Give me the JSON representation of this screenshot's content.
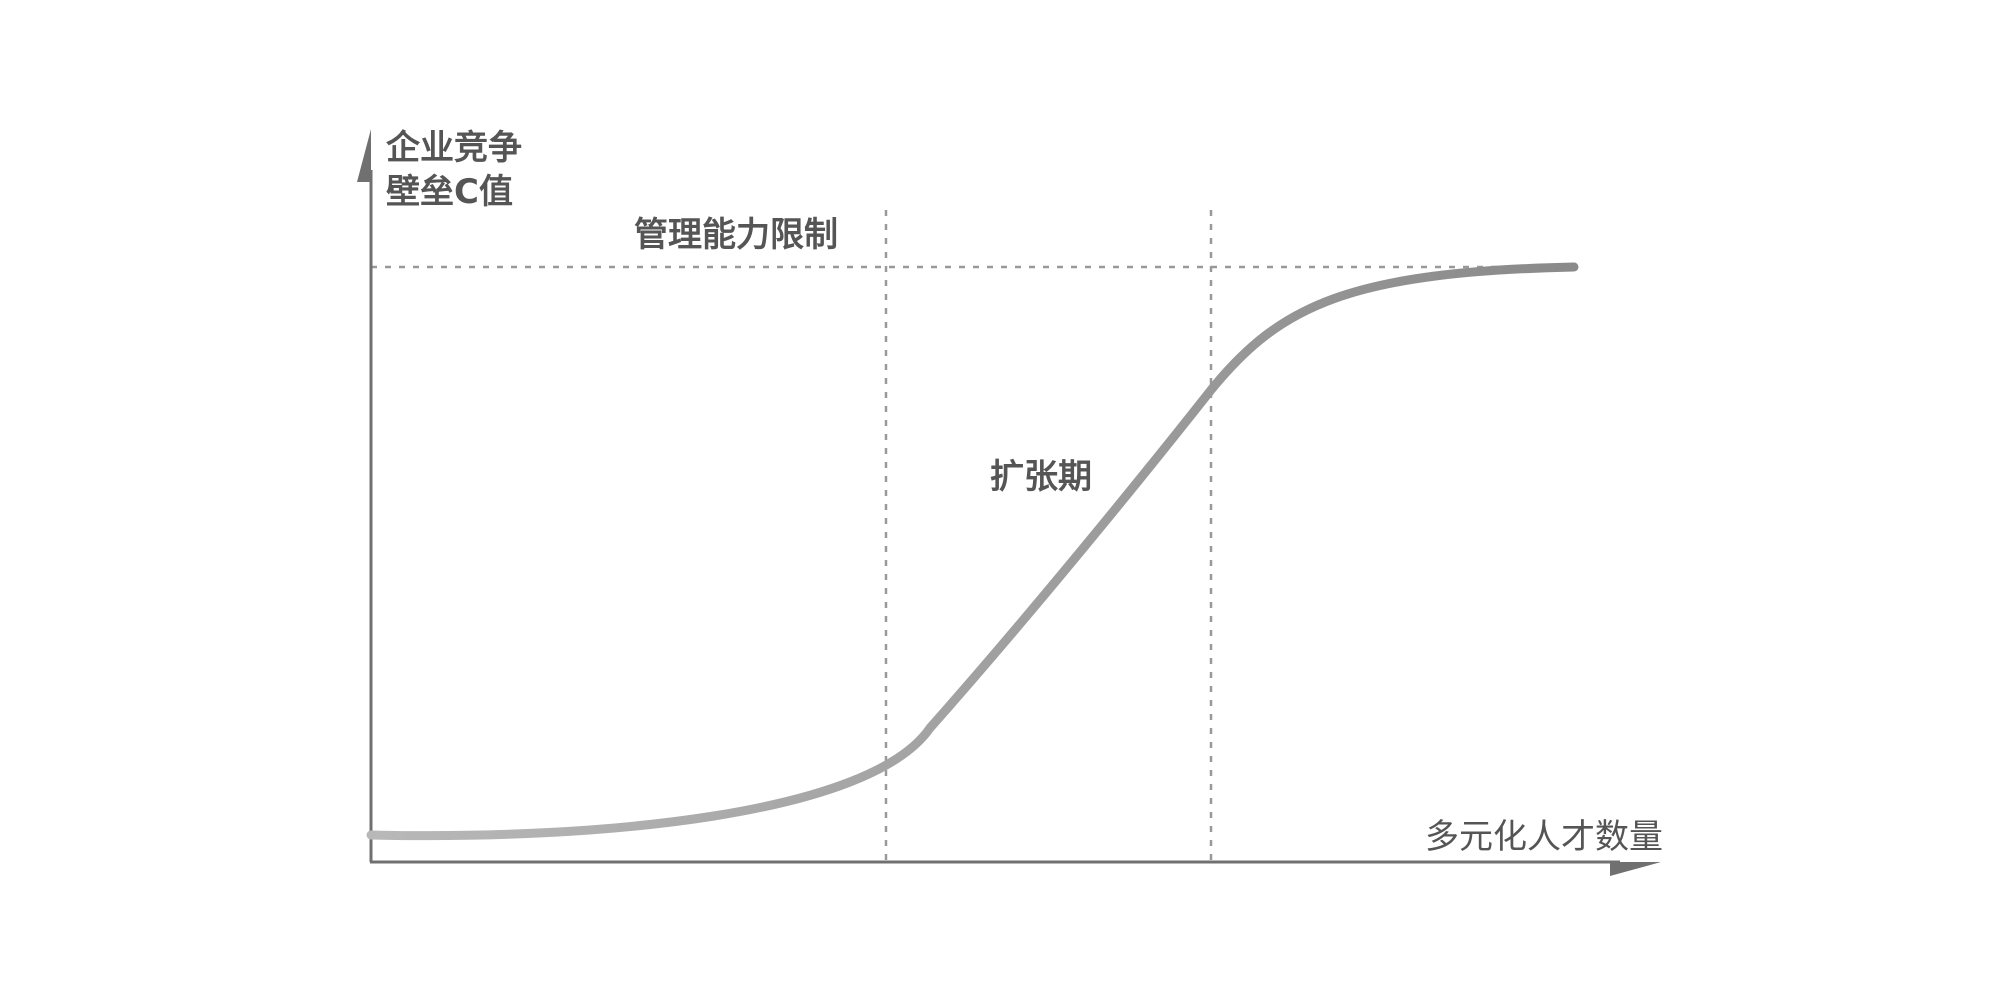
{
  "diagram": {
    "y_axis_label_line1": "企业竞争",
    "y_axis_label_line2": "壁垒C值",
    "x_axis_label": "多元化人才数量",
    "limit_label": "管理能力限制",
    "phase_label": "扩张期",
    "curve_type": "S-curve",
    "colors": {
      "axis": "#707070",
      "curve_start": "#b8b8b8",
      "curve_end": "#8a8a8a",
      "dashed": "#999999",
      "text": "#555555"
    }
  }
}
